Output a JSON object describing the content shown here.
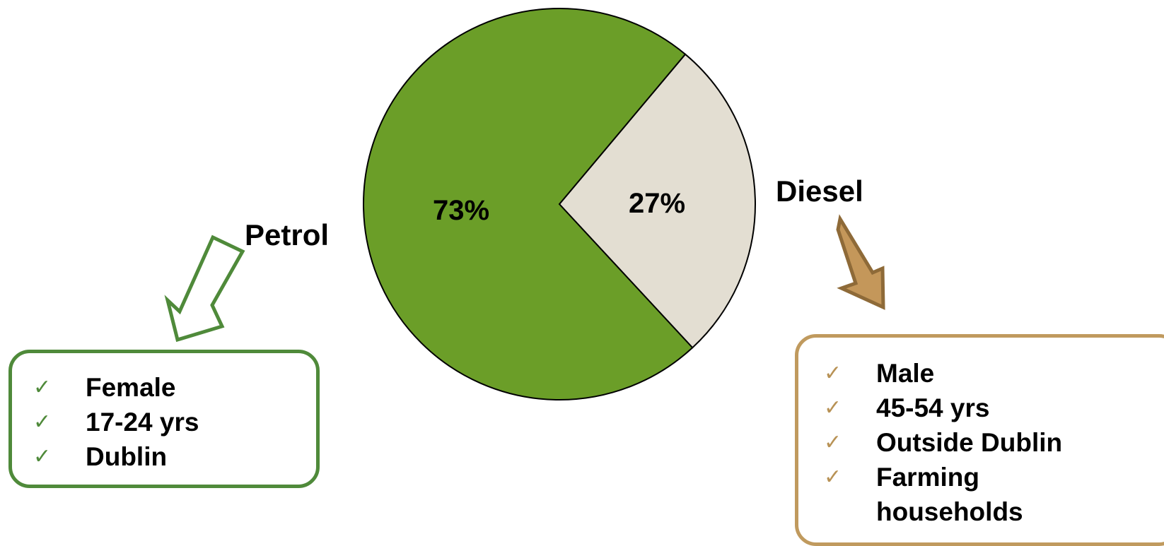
{
  "chart_data": {
    "type": "pie",
    "slices": [
      {
        "label": "Petrol",
        "value": 73,
        "display": "73%",
        "color": "#6b9e28"
      },
      {
        "label": "Diesel",
        "value": 27,
        "display": "27%",
        "color": "#e3ded2"
      }
    ]
  },
  "petrol_box": {
    "border_color": "#4f8a3a",
    "check_color": "#4f8a3a",
    "items": [
      "Female",
      "17-24 yrs",
      "Dublin"
    ]
  },
  "diesel_box": {
    "border_color": "#c09a5e",
    "check_color": "#b89255",
    "items": [
      "Male",
      "45-54 yrs",
      "Outside Dublin",
      "Farming households"
    ]
  },
  "icons": {
    "check": "✓",
    "petrol_arrow": "hollow-arrow-down-left",
    "diesel_arrow": "filled-arrow-down-right"
  },
  "colors": {
    "petrol_arrow_stroke": "#4f8a3a",
    "diesel_arrow_fill": "#c4975a",
    "diesel_arrow_stroke": "#8e6a38"
  }
}
